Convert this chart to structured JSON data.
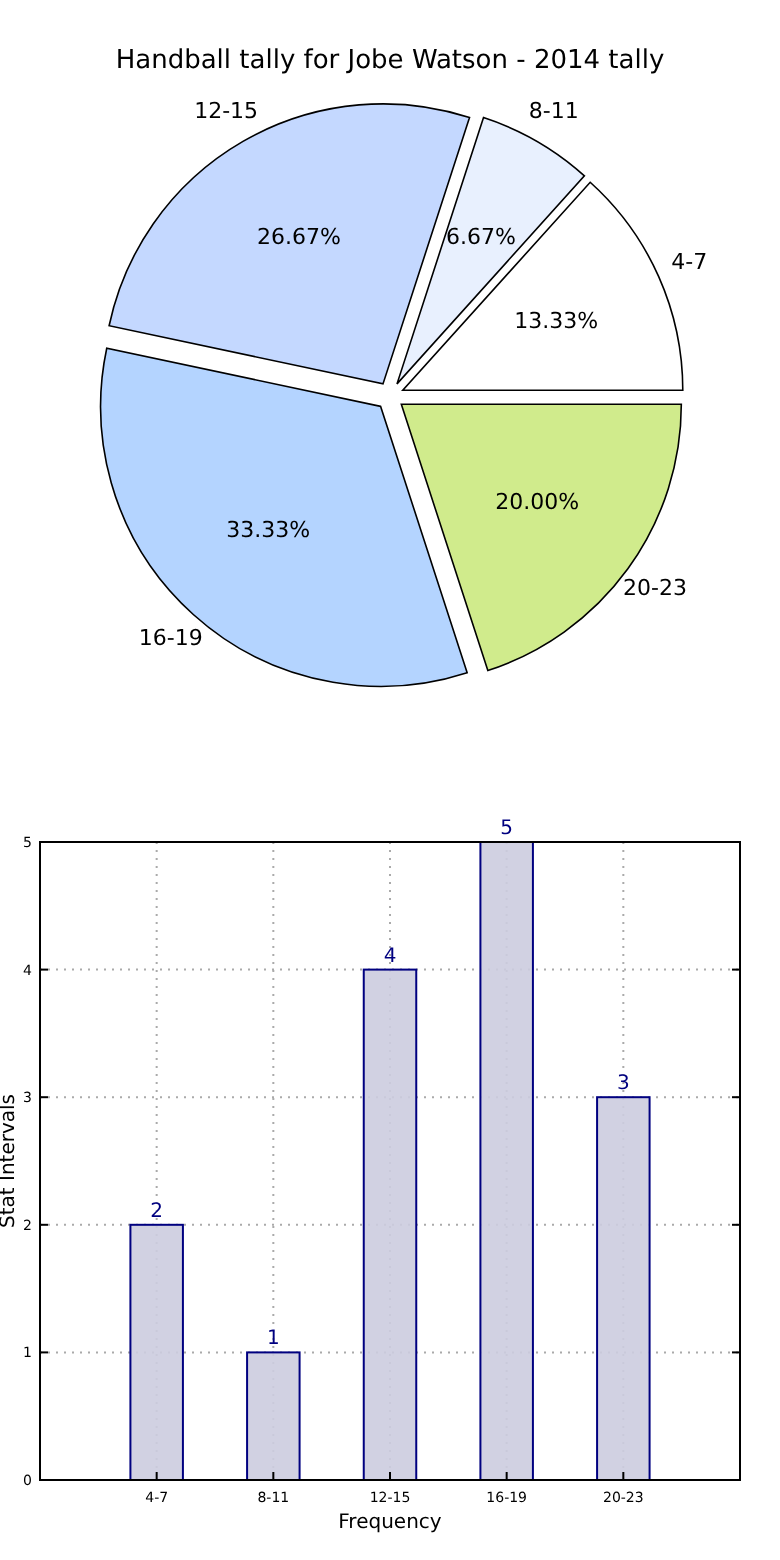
{
  "chart_data": [
    {
      "type": "pie",
      "title": "Handball tally for Jobe Watson - 2014 tally",
      "categories": [
        "4-7",
        "8-11",
        "12-15",
        "16-19",
        "20-23"
      ],
      "values": [
        13.33,
        6.67,
        26.67,
        33.33,
        20.0
      ],
      "value_labels": [
        "13.33%",
        "6.67%",
        "26.67%",
        "33.33%",
        "20.00%"
      ],
      "colors": [
        "#ffffff",
        "#e8f0fe",
        "#c4d8ff",
        "#b4d4ff",
        "#d0eb8c"
      ]
    },
    {
      "type": "bar",
      "categories": [
        "4-7",
        "8-11",
        "12-15",
        "16-19",
        "20-23"
      ],
      "values": [
        2,
        1,
        4,
        5,
        3
      ],
      "color": "#ccccdf",
      "ylim": [
        0,
        5
      ],
      "yticks": [
        0,
        1,
        2,
        3,
        4,
        5
      ],
      "grid": true,
      "data_labels": true,
      "xlabel": "Frequency",
      "ylabel": "Stat Intervals"
    }
  ]
}
